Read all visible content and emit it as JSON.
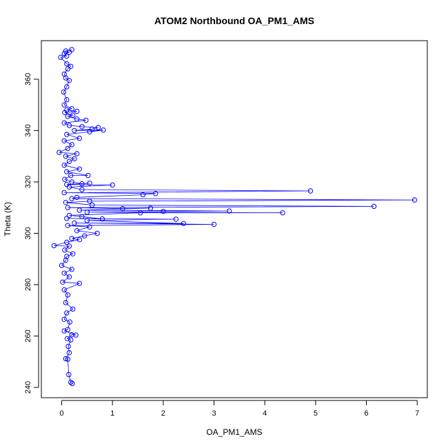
{
  "chart_data": {
    "type": "scatter",
    "title": "ATOM2 Northbound OA_PM1_AMS",
    "xlabel": "OA_PM1_AMS",
    "ylabel": "Theta (K)",
    "xlim": [
      -0.4,
      7.2
    ],
    "ylim": [
      236,
      375
    ],
    "xticks": [
      0,
      1,
      2,
      3,
      4,
      5,
      6,
      7
    ],
    "yticks": [
      240,
      260,
      280,
      300,
      320,
      340,
      360
    ],
    "grid": false,
    "connected": true,
    "marker": "open-circle",
    "color": "#0000ff",
    "series": [
      {
        "values": [
          [
            0.21,
            241.5
          ],
          [
            0.18,
            242.0
          ],
          [
            0.14,
            245.0
          ],
          [
            0.12,
            251.0
          ],
          [
            0.08,
            251.2
          ],
          [
            0.15,
            253.5
          ],
          [
            0.13,
            256.0
          ],
          [
            0.18,
            258.5
          ],
          [
            0.11,
            259.0
          ],
          [
            0.2,
            260.5
          ],
          [
            0.28,
            260.4
          ],
          [
            0.05,
            262.0
          ],
          [
            0.12,
            262.5
          ],
          [
            0.16,
            265.5
          ],
          [
            0.05,
            266.5
          ],
          [
            0.1,
            269.0
          ],
          [
            0.22,
            270.5
          ],
          [
            0.08,
            273.0
          ],
          [
            0.12,
            276.0
          ],
          [
            0.05,
            278.0
          ],
          [
            0.35,
            280.5
          ],
          [
            0.02,
            281.0
          ],
          [
            0.15,
            283.0
          ],
          [
            0.05,
            284.5
          ],
          [
            0.2,
            286.0
          ],
          [
            0.0,
            287.5
          ],
          [
            0.08,
            289.5
          ],
          [
            0.1,
            291.0
          ],
          [
            0.22,
            292.0
          ],
          [
            0.06,
            293.5
          ],
          [
            0.15,
            295.0
          ],
          [
            -0.15,
            295.2
          ],
          [
            0.1,
            296.5
          ],
          [
            0.35,
            297.5
          ],
          [
            0.2,
            298.0
          ],
          [
            0.45,
            299.0
          ],
          [
            0.7,
            300.0
          ],
          [
            0.3,
            301.0
          ],
          [
            0.55,
            302.5
          ],
          [
            0.12,
            303.0
          ],
          [
            3.0,
            303.5
          ],
          [
            0.25,
            304.0
          ],
          [
            2.4,
            303.8
          ],
          [
            0.5,
            305.0
          ],
          [
            2.25,
            305.5
          ],
          [
            0.1,
            305.8
          ],
          [
            0.8,
            305.6
          ],
          [
            0.4,
            306.5
          ],
          [
            0.15,
            307.0
          ],
          [
            1.55,
            308.0
          ],
          [
            4.35,
            308.0
          ],
          [
            0.5,
            308.2
          ],
          [
            2.0,
            308.5
          ],
          [
            3.3,
            308.7
          ],
          [
            0.35,
            309.0
          ],
          [
            1.75,
            309.8
          ],
          [
            1.2,
            309.6
          ],
          [
            0.12,
            310.0
          ],
          [
            6.15,
            310.5
          ],
          [
            0.6,
            311.0
          ],
          [
            0.08,
            312.0
          ],
          [
            0.55,
            312.5
          ],
          [
            6.95,
            313.0
          ],
          [
            0.2,
            313.5
          ],
          [
            0.3,
            314.0
          ],
          [
            1.6,
            315.0
          ],
          [
            1.85,
            315.5
          ],
          [
            0.05,
            315.8
          ],
          [
            4.9,
            316.5
          ],
          [
            0.4,
            317.0
          ],
          [
            0.15,
            318.0
          ],
          [
            1.0,
            318.8
          ],
          [
            0.1,
            319.0
          ],
          [
            0.55,
            319.5
          ],
          [
            0.4,
            319.3
          ],
          [
            0.2,
            320.0
          ],
          [
            0.06,
            321.0
          ],
          [
            0.18,
            322.5
          ],
          [
            0.52,
            322.5
          ],
          [
            0.1,
            324.0
          ],
          [
            0.35,
            325.0
          ],
          [
            0.05,
            326.5
          ],
          [
            0.15,
            328.0
          ],
          [
            0.25,
            329.0
          ],
          [
            0.08,
            330.0
          ],
          [
            0.3,
            331.0
          ],
          [
            -0.05,
            331.5
          ],
          [
            0.12,
            333.0
          ],
          [
            0.2,
            334.5
          ],
          [
            0.05,
            336.0
          ],
          [
            0.35,
            337.0
          ],
          [
            0.1,
            338.5
          ],
          [
            0.55,
            339.5
          ],
          [
            0.82,
            340.2
          ],
          [
            0.25,
            340.0
          ],
          [
            0.6,
            340.6
          ],
          [
            0.72,
            341.2
          ],
          [
            0.4,
            341.5
          ],
          [
            0.15,
            342.0
          ],
          [
            0.05,
            343.0
          ],
          [
            0.48,
            344.0
          ],
          [
            0.3,
            344.5
          ],
          [
            0.12,
            345.5
          ],
          [
            0.22,
            346.0
          ],
          [
            0.06,
            347.0
          ],
          [
            0.3,
            347.5
          ],
          [
            0.1,
            348.0
          ],
          [
            0.2,
            348.5
          ],
          [
            0.05,
            350.0
          ],
          [
            0.1,
            352.0
          ],
          [
            0.04,
            355.0
          ],
          [
            0.1,
            357.0
          ],
          [
            0.15,
            359.5
          ],
          [
            0.08,
            360.5
          ],
          [
            0.05,
            362.0
          ],
          [
            0.12,
            364.0
          ],
          [
            0.18,
            365.0
          ],
          [
            0.1,
            366.0
          ],
          [
            -0.02,
            368.5
          ],
          [
            0.1,
            369.0
          ],
          [
            0.05,
            370.0
          ],
          [
            0.15,
            370.5
          ],
          [
            0.08,
            371.0
          ],
          [
            0.2,
            371.5
          ]
        ]
      }
    ]
  }
}
